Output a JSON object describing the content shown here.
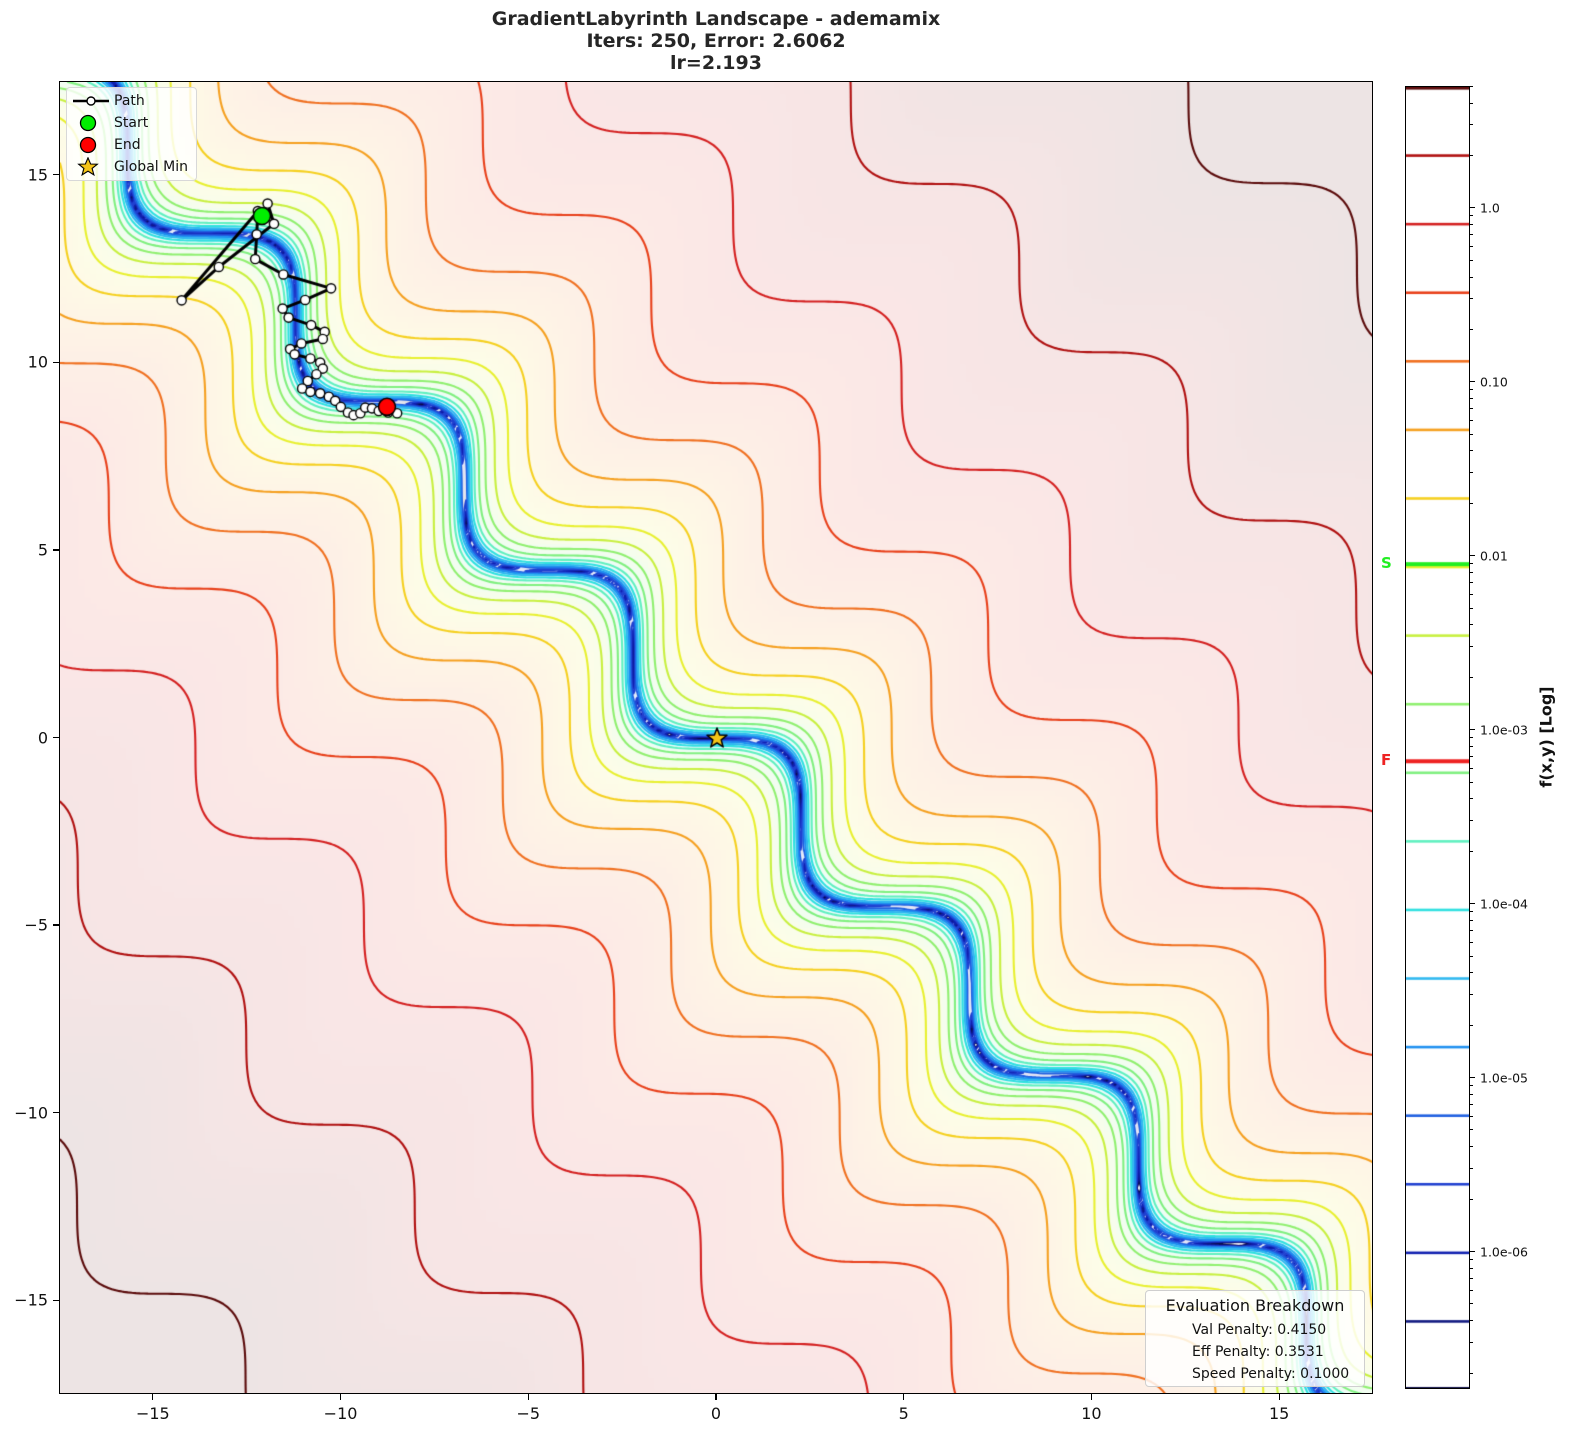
{
  "title": {
    "line1": "GradientLabyrinth Landscape - ademamix",
    "line2": "Iters: 250, Error: 2.6062",
    "line3": "lr=2.193"
  },
  "legend": {
    "items": [
      {
        "label": "Path",
        "glyph": "line-with-circle-marker"
      },
      {
        "label": "Start",
        "glyph": "green-circle",
        "color": "#00ee00"
      },
      {
        "label": "End",
        "glyph": "red-circle",
        "color": "#ff0000"
      },
      {
        "label": "Global Min",
        "glyph": "gold-star",
        "color": "#f5c518"
      }
    ]
  },
  "evaluation": {
    "title": "Evaluation Breakdown",
    "rows": [
      "Val Penalty: 0.4150",
      "Eff Penalty: 0.3531",
      "Speed Penalty: 0.1000"
    ]
  },
  "colorbar": {
    "label": "f(x,y) [Log]",
    "ticks": [
      {
        "label": "1.0",
        "value": 1.0
      },
      {
        "label": "0.10",
        "value": 0.1
      },
      {
        "label": "0.01",
        "value": 0.01
      },
      {
        "label": "1.0e-03",
        "value": 0.001
      },
      {
        "label": "1.0e-04",
        "value": 0.0001
      },
      {
        "label": "1.0e-05",
        "value": 1e-05
      },
      {
        "label": "1.0e-06",
        "value": 1e-06
      }
    ],
    "range_log10": [
      -6.79,
      0.7
    ],
    "level_colors": [
      "#0a0a40",
      "#101880",
      "#1020b0",
      "#2040d0",
      "#2060e0",
      "#2090f0",
      "#30b8f0",
      "#30e0e0",
      "#60f0c0",
      "#80f080",
      "#90f070",
      "#c8f040",
      "#e8f030",
      "#f5d020",
      "#f5a020",
      "#f07020",
      "#e8401a",
      "#d42020",
      "#b01010",
      "#5a0a0a"
    ],
    "markers": [
      {
        "label": "S",
        "value": 0.00906,
        "color": "#22ee22"
      },
      {
        "label": "F",
        "value": 0.000667,
        "color": "#ee2222"
      }
    ]
  },
  "chart_data": {
    "type": "contour",
    "title": "GradientLabyrinth Landscape - ademamix\nIters: 250, Error: 2.6062\nlr=2.193",
    "xlabel": "",
    "ylabel": "",
    "xlim": [
      -17.5,
      17.5
    ],
    "ylim": [
      -17.5,
      17.5
    ],
    "xticks": [
      -15,
      -10,
      -5,
      0,
      5,
      10,
      15
    ],
    "yticks": [
      -15,
      -10,
      -5,
      0,
      5,
      10,
      15
    ],
    "xtick_labels": [
      "−15",
      "−10",
      "−5",
      "0",
      "5",
      "10",
      "15"
    ],
    "ytick_labels": [
      "−15",
      "−10",
      "−5",
      "0",
      "5",
      "10",
      "15"
    ],
    "grid": false,
    "legend_position": "upper left",
    "colorbar_scale": "log",
    "contour_levels_log10_min": -6.79,
    "contour_levels_log10_max": 0.7,
    "contour_level_count": 20,
    "field": {
      "wave_amplitude": 1.0,
      "wave_k": 0.99,
      "scale": 0.0025,
      "power": 2.5,
      "floor": 0.02,
      "island_k": 2.2
    },
    "global_min": {
      "x": 0.0,
      "y": 0.0
    },
    "start": {
      "x": -12.12,
      "y": 13.93
    },
    "end": {
      "x": -8.79,
      "y": 8.84
    },
    "path": [
      [
        -12.12,
        13.93
      ],
      [
        -11.97,
        14.26
      ],
      [
        -11.8,
        13.72
      ],
      [
        -13.27,
        12.57
      ],
      [
        -14.26,
        11.68
      ],
      [
        -12.23,
        14.06
      ],
      [
        -12.26,
        13.44
      ],
      [
        -12.3,
        12.78
      ],
      [
        -11.55,
        12.37
      ],
      [
        -10.28,
        12.0
      ],
      [
        -10.97,
        11.69
      ],
      [
        -11.57,
        11.46
      ],
      [
        -11.41,
        11.22
      ],
      [
        -10.81,
        11.02
      ],
      [
        -10.45,
        10.84
      ],
      [
        -10.5,
        10.65
      ],
      [
        -11.07,
        10.53
      ],
      [
        -11.37,
        10.38
      ],
      [
        -11.25,
        10.24
      ],
      [
        -10.83,
        10.13
      ],
      [
        -10.57,
        10.02
      ],
      [
        -10.5,
        9.86
      ],
      [
        -10.67,
        9.71
      ],
      [
        -10.9,
        9.53
      ],
      [
        -11.05,
        9.33
      ],
      [
        -10.83,
        9.24
      ],
      [
        -10.57,
        9.2
      ],
      [
        -10.34,
        9.11
      ],
      [
        -10.17,
        9.0
      ],
      [
        -10.02,
        8.84
      ],
      [
        -9.83,
        8.69
      ],
      [
        -9.68,
        8.62
      ],
      [
        -9.5,
        8.67
      ],
      [
        -9.37,
        8.82
      ],
      [
        -9.19,
        8.8
      ],
      [
        -9.01,
        8.73
      ],
      [
        -8.76,
        8.69
      ],
      [
        -8.52,
        8.67
      ],
      [
        -8.79,
        8.84
      ]
    ],
    "evaluation": {
      "val_penalty": 0.415,
      "eff_penalty": 0.3531,
      "speed_penalty": 0.1
    },
    "iters": 250,
    "error": 2.6062,
    "lr": 2.193
  }
}
